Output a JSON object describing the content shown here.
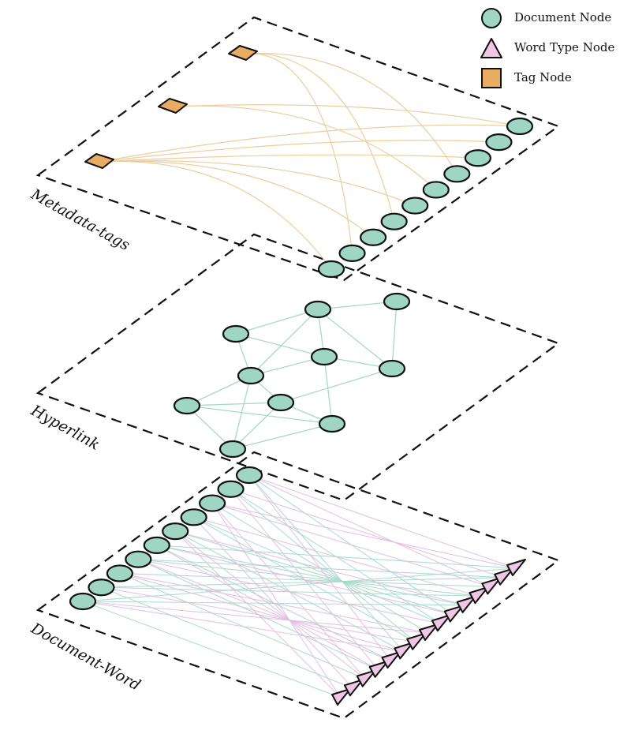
{
  "colors": {
    "doc_fill": "#9ed5c3",
    "word_fill": "#f0c7e3",
    "tag_fill": "#e8ad62",
    "stroke": "#111111",
    "doc_edge": "#a6d9c8",
    "word_edge": "#e2bde0",
    "tag_edge": "#eccd9c"
  },
  "legend": {
    "document": "Document Node",
    "word": "Word Type Node",
    "tag": "Tag Node"
  },
  "layers": {
    "metadata": "Metadata-tags",
    "hyperlink": "Hyperlink",
    "document_word": "Document-Word"
  },
  "icons": [
    "circle-icon",
    "triangle-icon",
    "square-icon"
  ]
}
